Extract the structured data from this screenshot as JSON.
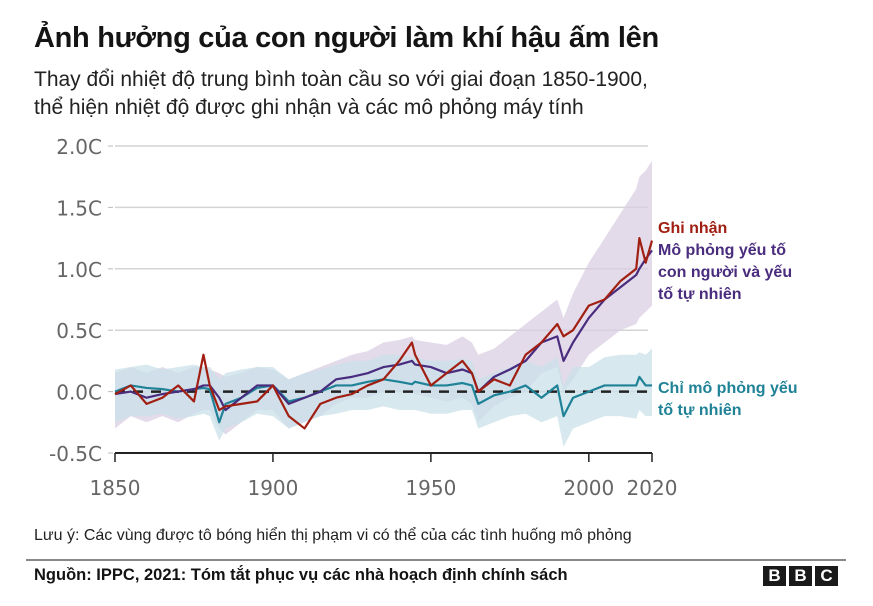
{
  "header": {
    "title": "Ảnh hưởng của con người làm khí hậu ấm lên",
    "subtitle_line1": "Thay đổi nhiệt độ trung bình toàn cầu so với giai đoạn 1850-1900,",
    "subtitle_line2": "thể hiện nhiệt độ được ghi nhận và các mô phỏng máy tính"
  },
  "footer": {
    "note": "Lưu ý: Các vùng được tô bóng hiển thị phạm vi có thể của các tình huống mô phỏng",
    "source": "Nguồn: IPPC, 2021: Tóm tắt phục vụ các nhà hoạch định chính sách",
    "logo_letters": [
      "B",
      "B",
      "C"
    ]
  },
  "colors": {
    "observed": "#a01f12",
    "human_natural": "#4a2c7e",
    "natural_only": "#1f8297",
    "human_natural_band": "#d9cfe3",
    "natural_only_band": "#c9e0e8",
    "grid": "#d4d4d4",
    "axis": "#222222",
    "baseline": "#222222"
  },
  "chart_data": {
    "type": "line",
    "title": "Ảnh hưởng của con người làm khí hậu ấm lên",
    "xlabel": "",
    "ylabel": "",
    "xlim": [
      1850,
      2020
    ],
    "ylim": [
      -0.5,
      2.0
    ],
    "x_ticks": [
      1850,
      1900,
      1950,
      2000,
      2020
    ],
    "x_tick_labels": [
      "1850",
      "1900",
      "1950",
      "2000",
      "2020"
    ],
    "y_ticks": [
      -0.5,
      0.0,
      0.5,
      1.0,
      1.5,
      2.0
    ],
    "y_tick_labels": [
      "-0.5C",
      "0.0C",
      "0.5C",
      "1.0C",
      "1.5C",
      "2.0C"
    ],
    "grid": true,
    "baseline": {
      "y": 0.0,
      "style": "dashed"
    },
    "legend_placement": "right",
    "x": [
      1850,
      1855,
      1860,
      1865,
      1870,
      1875,
      1878,
      1880,
      1883,
      1885,
      1890,
      1895,
      1900,
      1905,
      1910,
      1915,
      1920,
      1925,
      1930,
      1935,
      1940,
      1944,
      1945,
      1950,
      1955,
      1960,
      1963,
      1965,
      1970,
      1975,
      1980,
      1985,
      1990,
      1992,
      1995,
      2000,
      2005,
      2010,
      2015,
      2016,
      2018,
      2020
    ],
    "series": [
      {
        "name": "Ghi nhận",
        "key": "observed",
        "values": [
          -0.02,
          0.05,
          -0.1,
          -0.05,
          0.05,
          -0.08,
          0.3,
          0.05,
          -0.15,
          -0.12,
          -0.1,
          -0.08,
          0.05,
          -0.2,
          -0.3,
          -0.1,
          -0.05,
          -0.02,
          0.05,
          0.1,
          0.25,
          0.4,
          0.3,
          0.05,
          0.15,
          0.25,
          0.15,
          0.0,
          0.1,
          0.05,
          0.3,
          0.4,
          0.55,
          0.45,
          0.5,
          0.7,
          0.75,
          0.9,
          1.0,
          1.25,
          1.05,
          1.23
        ]
      },
      {
        "name": "Mô phỏng yếu tố con người và yếu tố tự nhiên",
        "key": "human_natural",
        "values": [
          -0.02,
          0.0,
          -0.05,
          -0.02,
          0.0,
          0.02,
          0.05,
          0.05,
          -0.05,
          -0.15,
          -0.05,
          0.05,
          0.05,
          -0.1,
          -0.05,
          0.0,
          0.1,
          0.12,
          0.15,
          0.2,
          0.22,
          0.25,
          0.22,
          0.2,
          0.15,
          0.18,
          0.15,
          0.0,
          0.12,
          0.18,
          0.25,
          0.4,
          0.45,
          0.25,
          0.4,
          0.6,
          0.75,
          0.85,
          0.95,
          1.0,
          1.08,
          1.15
        ]
      },
      {
        "name": "Chỉ mô phỏng yếu tố tự nhiên",
        "key": "natural_only",
        "values": [
          0.0,
          0.05,
          0.03,
          0.02,
          0.0,
          0.02,
          0.03,
          0.02,
          -0.25,
          -0.1,
          -0.05,
          0.03,
          0.05,
          -0.08,
          -0.05,
          0.0,
          0.05,
          0.05,
          0.08,
          0.1,
          0.08,
          0.06,
          0.08,
          0.05,
          0.05,
          0.07,
          0.05,
          -0.1,
          -0.03,
          0.0,
          0.05,
          -0.05,
          0.05,
          -0.2,
          -0.05,
          0.0,
          0.05,
          0.05,
          0.05,
          0.12,
          0.05,
          0.05
        ]
      }
    ],
    "bands": [
      {
        "name": "Phạm vi mô phỏng yếu tố con người và tự nhiên",
        "key": "human_natural_band",
        "upper": [
          0.15,
          0.2,
          0.15,
          0.2,
          0.15,
          0.2,
          0.2,
          0.18,
          0.15,
          0.12,
          0.15,
          0.2,
          0.18,
          0.1,
          0.15,
          0.2,
          0.25,
          0.3,
          0.33,
          0.4,
          0.42,
          0.45,
          0.42,
          0.4,
          0.38,
          0.45,
          0.4,
          0.3,
          0.35,
          0.45,
          0.55,
          0.65,
          0.75,
          0.6,
          0.8,
          1.05,
          1.25,
          1.45,
          1.65,
          1.75,
          1.8,
          1.88
        ],
        "lower": [
          -0.3,
          -0.2,
          -0.25,
          -0.2,
          -0.25,
          -0.18,
          -0.15,
          -0.15,
          -0.3,
          -0.35,
          -0.25,
          -0.15,
          -0.15,
          -0.3,
          -0.25,
          -0.2,
          -0.1,
          -0.05,
          -0.05,
          0.0,
          0.0,
          0.0,
          -0.02,
          -0.05,
          -0.08,
          -0.05,
          -0.1,
          -0.25,
          -0.12,
          -0.05,
          0.0,
          0.15,
          0.2,
          0.0,
          0.1,
          0.3,
          0.4,
          0.5,
          0.55,
          0.6,
          0.65,
          0.7
        ]
      },
      {
        "name": "Phạm vi chỉ mô phỏng yếu tố tự nhiên",
        "key": "natural_only_band",
        "upper": [
          0.18,
          0.2,
          0.22,
          0.18,
          0.2,
          0.22,
          0.2,
          0.2,
          0.1,
          0.15,
          0.18,
          0.2,
          0.2,
          0.1,
          0.15,
          0.18,
          0.22,
          0.25,
          0.25,
          0.3,
          0.3,
          0.28,
          0.28,
          0.25,
          0.25,
          0.27,
          0.25,
          0.1,
          0.15,
          0.2,
          0.25,
          0.2,
          0.28,
          0.05,
          0.2,
          0.2,
          0.28,
          0.3,
          0.3,
          0.32,
          0.3,
          0.35
        ],
        "lower": [
          -0.25,
          -0.2,
          -0.2,
          -0.18,
          -0.22,
          -0.2,
          -0.18,
          -0.2,
          -0.4,
          -0.3,
          -0.25,
          -0.18,
          -0.2,
          -0.3,
          -0.25,
          -0.2,
          -0.18,
          -0.15,
          -0.15,
          -0.12,
          -0.15,
          -0.15,
          -0.15,
          -0.18,
          -0.18,
          -0.15,
          -0.15,
          -0.3,
          -0.25,
          -0.2,
          -0.18,
          -0.25,
          -0.2,
          -0.45,
          -0.3,
          -0.25,
          -0.2,
          -0.2,
          -0.22,
          -0.15,
          -0.2,
          -0.2
        ]
      }
    ],
    "legend": [
      {
        "label": "Ghi nhận",
        "key": "observed"
      },
      {
        "label": "Mô phỏng yếu tố con người và yếu tố tự nhiên",
        "key": "human_natural"
      },
      {
        "label": "Chỉ mô phỏng yếu tố tự nhiên",
        "key": "natural_only"
      }
    ],
    "legend_lines": {
      "observed": [
        "Ghi nhận"
      ],
      "human_natural": [
        "Mô phỏng yếu tố",
        "con người và yếu",
        "tố tự nhiên"
      ],
      "natural_only": [
        "Chỉ mô phỏng yếu",
        "tố tự nhiên"
      ]
    }
  }
}
